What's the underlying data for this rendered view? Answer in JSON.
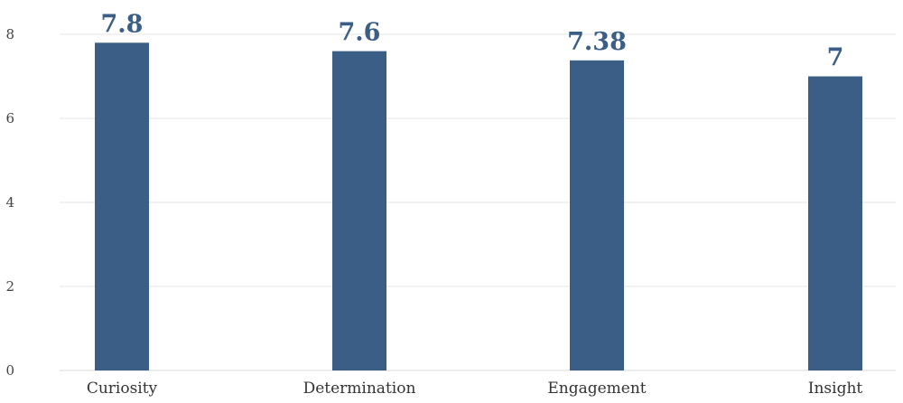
{
  "colors": {
    "bar": "#3a5e85",
    "label": "#3a5e85"
  },
  "chart_data": {
    "type": "bar",
    "categories": [
      "Curiosity",
      "Determination",
      "Engagement",
      "Insight"
    ],
    "values": [
      7.8,
      7.6,
      7.38,
      7
    ],
    "value_labels": [
      "7.8",
      "7.6",
      "7.38",
      "7"
    ],
    "title": "",
    "xlabel": "",
    "ylabel": "",
    "ylim": [
      0,
      8
    ],
    "yticks": [
      0,
      2,
      4,
      6,
      8
    ],
    "ytick_labels": [
      "0",
      "2",
      "4",
      "6",
      "8"
    ],
    "grid": true,
    "legend": "none"
  }
}
